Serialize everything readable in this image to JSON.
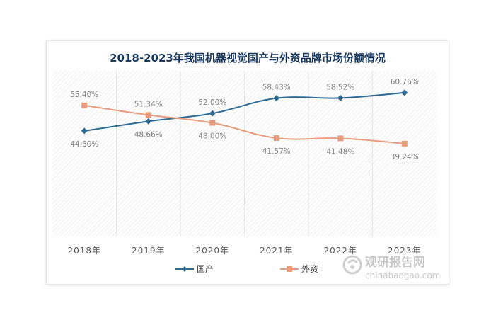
{
  "chart_data": {
    "type": "line",
    "title": "2018-2023年我国机器视觉国产与外资品牌市场份额情况",
    "categories": [
      "2018年",
      "2019年",
      "2020年",
      "2021年",
      "2022年",
      "2023年"
    ],
    "series": [
      {
        "name": "国产",
        "values": [
          44.6,
          48.66,
          52.0,
          58.43,
          58.52,
          60.76
        ],
        "labels": [
          "44.60%",
          "48.66%",
          "52.00%",
          "58.43%",
          "58.52%",
          "60.76%"
        ],
        "color": "#2e6a93",
        "marker": "diamond"
      },
      {
        "name": "外资",
        "values": [
          55.4,
          51.34,
          48.0,
          41.57,
          41.48,
          39.24
        ],
        "labels": [
          "55.40%",
          "51.34%",
          "48.00%",
          "41.57%",
          "41.48%",
          "39.24%"
        ],
        "color": "#e89c7d",
        "marker": "square"
      }
    ],
    "ylim": [
      0,
      70
    ],
    "grid": false,
    "legend": "bottom"
  },
  "watermark": {
    "text": "观研报告网",
    "url": "chinabaogao.com"
  }
}
